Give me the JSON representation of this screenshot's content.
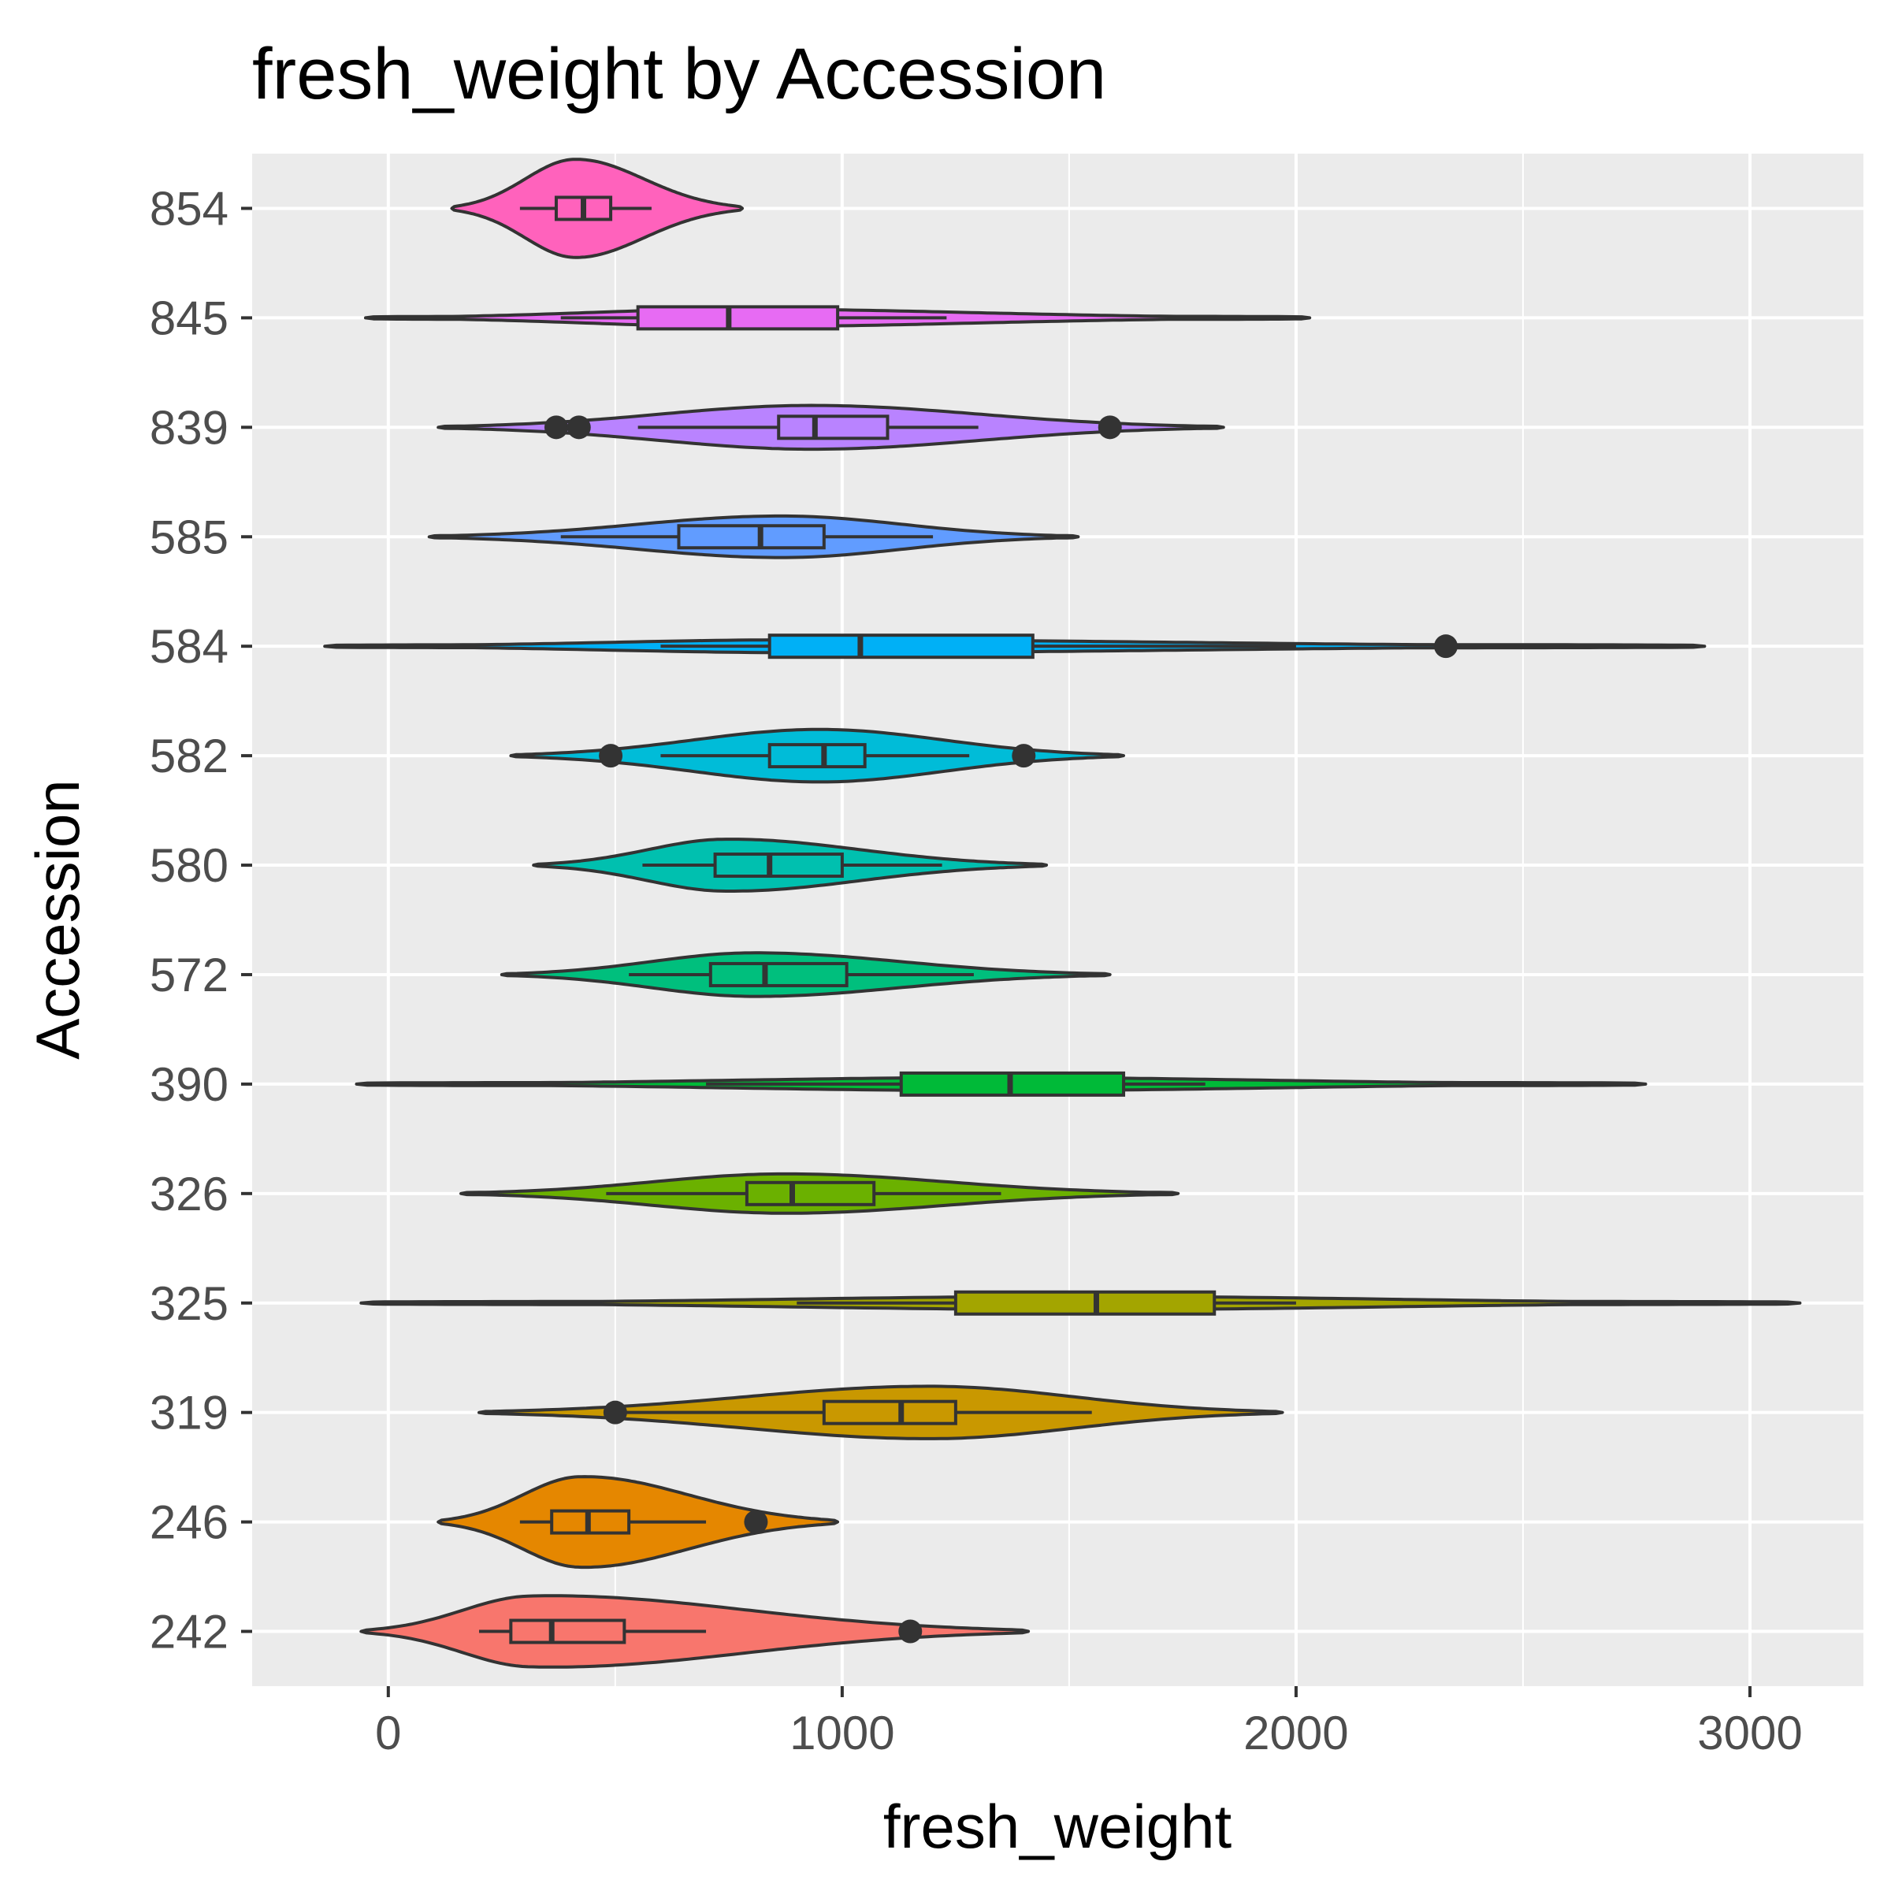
{
  "chart_data": {
    "type": "violin",
    "title": "fresh_weight by Accession",
    "xlabel": "fresh_weight",
    "ylabel": "Accession",
    "xlim": [
      -300,
      3250
    ],
    "x_ticks": [
      0,
      1000,
      2000,
      3000
    ],
    "x_tick_labels": [
      "0",
      "1000",
      "2000",
      "3000"
    ],
    "grid": true,
    "legend": "none",
    "categories": [
      "242",
      "246",
      "319",
      "325",
      "326",
      "390",
      "572",
      "580",
      "582",
      "584",
      "585",
      "839",
      "845",
      "854"
    ],
    "series": [
      {
        "name": "242",
        "color": "#F8766D",
        "violin_min": -60,
        "violin_max": 1410,
        "mode": 310,
        "width": 0.34,
        "q1": 270,
        "median": 360,
        "q3": 520,
        "whisker_low": 200,
        "whisker_high": 700,
        "outliers": [
          1150
        ]
      },
      {
        "name": "246",
        "color": "#E58700",
        "violin_min": 110,
        "violin_max": 990,
        "mode": 420,
        "width": 0.42,
        "q1": 360,
        "median": 440,
        "q3": 530,
        "whisker_low": 290,
        "whisker_high": 700,
        "outliers": [
          810
        ]
      },
      {
        "name": "319",
        "color": "#C99800",
        "violin_min": 200,
        "violin_max": 1970,
        "mode": 1200,
        "width": 0.24,
        "q1": 960,
        "median": 1130,
        "q3": 1250,
        "whisker_low": 520,
        "whisker_high": 1550,
        "outliers": [
          500
        ]
      },
      {
        "name": "325",
        "color": "#A3A500",
        "violin_min": -60,
        "violin_max": 3110,
        "mode": 1550,
        "width": 0.06,
        "q1": 1250,
        "median": 1560,
        "q3": 1820,
        "whisker_low": 900,
        "whisker_high": 2000,
        "outliers": []
      },
      {
        "name": "326",
        "color": "#6BB100",
        "violin_min": 160,
        "violin_max": 1740,
        "mode": 870,
        "width": 0.18,
        "q1": 790,
        "median": 890,
        "q3": 1070,
        "whisker_low": 480,
        "whisker_high": 1350,
        "outliers": []
      },
      {
        "name": "390",
        "color": "#00BA38",
        "violin_min": -70,
        "violin_max": 2770,
        "mode": 1350,
        "width": 0.06,
        "q1": 1130,
        "median": 1370,
        "q3": 1620,
        "whisker_low": 700,
        "whisker_high": 1800,
        "outliers": []
      },
      {
        "name": "572",
        "color": "#00BF7D",
        "violin_min": 250,
        "violin_max": 1590,
        "mode": 800,
        "width": 0.2,
        "q1": 710,
        "median": 830,
        "q3": 1010,
        "whisker_low": 530,
        "whisker_high": 1290,
        "outliers": []
      },
      {
        "name": "580",
        "color": "#00C0AF",
        "violin_min": 320,
        "violin_max": 1450,
        "mode": 740,
        "width": 0.24,
        "q1": 720,
        "median": 840,
        "q3": 1000,
        "whisker_low": 560,
        "whisker_high": 1220,
        "outliers": []
      },
      {
        "name": "582",
        "color": "#00BCD8",
        "violin_min": 270,
        "violin_max": 1620,
        "mode": 950,
        "width": 0.24,
        "q1": 840,
        "median": 960,
        "q3": 1050,
        "whisker_low": 600,
        "whisker_high": 1280,
        "outliers": [
          490,
          1400
        ]
      },
      {
        "name": "584",
        "color": "#00B0F6",
        "violin_min": -140,
        "violin_max": 2900,
        "mode": 900,
        "width": 0.06,
        "q1": 840,
        "median": 1040,
        "q3": 1420,
        "whisker_low": 600,
        "whisker_high": 2000,
        "outliers": [
          2330
        ]
      },
      {
        "name": "585",
        "color": "#619CFF",
        "violin_min": 90,
        "violin_max": 1520,
        "mode": 870,
        "width": 0.19,
        "q1": 640,
        "median": 820,
        "q3": 960,
        "whisker_low": 380,
        "whisker_high": 1200,
        "outliers": []
      },
      {
        "name": "839",
        "color": "#B983FF",
        "violin_min": 110,
        "violin_max": 1840,
        "mode": 930,
        "width": 0.2,
        "q1": 860,
        "median": 940,
        "q3": 1100,
        "whisker_low": 550,
        "whisker_high": 1300,
        "outliers": [
          370,
          420,
          1590
        ]
      },
      {
        "name": "845",
        "color": "#E76BF3",
        "violin_min": -50,
        "violin_max": 2030,
        "mode": 760,
        "width": 0.08,
        "q1": 550,
        "median": 750,
        "q3": 990,
        "whisker_low": 380,
        "whisker_high": 1230,
        "outliers": []
      },
      {
        "name": "854",
        "color": "#FF62BC",
        "violin_min": 140,
        "violin_max": 780,
        "mode": 410,
        "width": 0.45,
        "q1": 370,
        "median": 430,
        "q3": 490,
        "whisker_low": 290,
        "whisker_high": 580,
        "outliers": []
      }
    ]
  }
}
